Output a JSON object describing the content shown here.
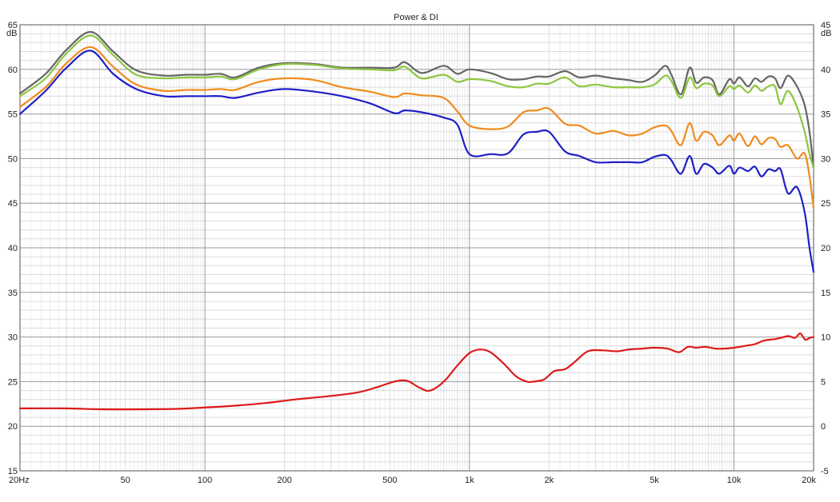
{
  "chart_data": {
    "type": "line",
    "title": "Power & DI",
    "x_scale": "log",
    "xlim": [
      20,
      20000
    ],
    "ylim_left": [
      15,
      65
    ],
    "ylim_right": [
      -5,
      45
    ],
    "left_unit": "dB",
    "right_unit": "dB",
    "grid": true,
    "x_ticks": [
      {
        "value": 20,
        "label": "20Hz"
      },
      {
        "value": 50,
        "label": "50"
      },
      {
        "value": 100,
        "label": "100"
      },
      {
        "value": 200,
        "label": "200"
      },
      {
        "value": 500,
        "label": "500"
      },
      {
        "value": 1000,
        "label": "1k"
      },
      {
        "value": 2000,
        "label": "2k"
      },
      {
        "value": 5000,
        "label": "5k"
      },
      {
        "value": 10000,
        "label": "10k"
      },
      {
        "value": 20000,
        "label": "20k"
      }
    ],
    "y_ticks_left": [
      "65",
      "60",
      "55",
      "50",
      "45",
      "40",
      "35",
      "30",
      "25",
      "20",
      "15"
    ],
    "y_ticks_right": [
      "45",
      "40",
      "35",
      "30",
      "25",
      "20",
      "15",
      "10",
      "5",
      "0",
      "-5"
    ],
    "series": [
      {
        "color": "#666666",
        "axis": "left",
        "x": [
          20,
          25,
          30,
          37,
          45,
          55,
          70,
          85,
          100,
          115,
          130,
          160,
          200,
          260,
          330,
          420,
          520,
          570,
          660,
          800,
          900,
          1000,
          1200,
          1400,
          1600,
          1800,
          2000,
          2300,
          2600,
          3000,
          3500,
          4000,
          4500,
          5000,
          5500,
          5800,
          6300,
          6800,
          7200,
          7700,
          8300,
          8800,
          9600,
          10000,
          10500,
          11300,
          12000,
          12700,
          13500,
          14300,
          15000,
          16000,
          17300,
          18500,
          19300,
          20000
        ],
        "y": [
          57.3,
          59.5,
          62.2,
          64.2,
          62.0,
          59.9,
          59.3,
          59.4,
          59.4,
          59.5,
          59.1,
          60.2,
          60.7,
          60.6,
          60.2,
          60.2,
          60.2,
          60.8,
          59.6,
          60.4,
          59.5,
          60.0,
          59.6,
          58.9,
          58.9,
          59.2,
          59.2,
          59.8,
          59.1,
          59.3,
          59.0,
          58.8,
          58.6,
          59.3,
          60.4,
          59.4,
          57.2,
          60.2,
          58.5,
          59.1,
          58.8,
          57.2,
          58.9,
          58.4,
          59.1,
          58.1,
          59.0,
          58.6,
          59.2,
          59.0,
          57.9,
          59.3,
          58.1,
          56.0,
          53.0,
          49.0
        ]
      },
      {
        "color": "#8dc63f",
        "axis": "left",
        "x": [
          20,
          25,
          30,
          37,
          45,
          55,
          70,
          85,
          100,
          115,
          130,
          160,
          200,
          260,
          330,
          420,
          520,
          570,
          660,
          800,
          900,
          1000,
          1200,
          1400,
          1600,
          1800,
          2000,
          2300,
          2600,
          3000,
          3500,
          4000,
          4500,
          5000,
          5500,
          5800,
          6300,
          6800,
          7200,
          7700,
          8300,
          8800,
          9600,
          10000,
          10500,
          11300,
          12000,
          12700,
          13500,
          14300,
          15000,
          16000,
          17300,
          18500,
          19300,
          20000
        ],
        "y": [
          57.0,
          59.0,
          61.8,
          63.8,
          61.6,
          59.4,
          59.0,
          59.1,
          59.1,
          59.2,
          58.9,
          60.0,
          60.6,
          60.5,
          60.1,
          60.0,
          59.9,
          60.3,
          59.0,
          59.4,
          58.6,
          58.9,
          58.7,
          58.1,
          58.0,
          58.4,
          58.4,
          59.1,
          58.1,
          58.3,
          58.0,
          58.0,
          58.0,
          58.3,
          59.3,
          58.7,
          56.8,
          59.1,
          57.9,
          58.4,
          58.2,
          57.0,
          58.1,
          57.8,
          58.2,
          57.4,
          58.2,
          57.6,
          58.1,
          58.1,
          56.1,
          57.6,
          55.8,
          53.0,
          50.5,
          49.0
        ]
      },
      {
        "color": "#f08c1e",
        "axis": "left",
        "x": [
          20,
          25,
          30,
          37,
          45,
          55,
          70,
          85,
          100,
          115,
          130,
          160,
          200,
          260,
          330,
          420,
          520,
          570,
          660,
          800,
          900,
          1000,
          1200,
          1400,
          1600,
          1800,
          2000,
          2300,
          2600,
          3000,
          3500,
          4000,
          4500,
          5000,
          5500,
          5800,
          6300,
          6800,
          7200,
          7700,
          8300,
          8800,
          9600,
          10000,
          10500,
          11300,
          12000,
          12700,
          13500,
          14300,
          15000,
          16000,
          17300,
          18500,
          19300,
          20000
        ],
        "y": [
          55.8,
          58.0,
          60.7,
          62.5,
          60.3,
          58.3,
          57.6,
          57.7,
          57.7,
          57.8,
          57.7,
          58.6,
          59.0,
          58.8,
          58.0,
          57.5,
          56.9,
          57.3,
          57.1,
          56.8,
          55.3,
          53.7,
          53.3,
          53.6,
          55.2,
          55.4,
          55.6,
          53.9,
          53.7,
          52.8,
          53.1,
          52.6,
          52.8,
          53.5,
          53.7,
          53.1,
          51.5,
          54.0,
          52.0,
          53.0,
          52.6,
          51.5,
          52.6,
          52.0,
          52.8,
          51.4,
          52.5,
          51.6,
          52.3,
          52.2,
          51.3,
          51.5,
          50.0,
          50.6,
          48.0,
          44.5
        ]
      },
      {
        "color": "#1f1fc8",
        "axis": "left",
        "x": [
          20,
          25,
          30,
          37,
          45,
          55,
          70,
          85,
          100,
          115,
          130,
          160,
          200,
          260,
          330,
          420,
          520,
          570,
          660,
          800,
          900,
          1000,
          1200,
          1400,
          1600,
          1800,
          2000,
          2300,
          2600,
          3000,
          3500,
          4000,
          4500,
          5000,
          5500,
          5800,
          6300,
          6800,
          7200,
          7700,
          8300,
          8800,
          9600,
          10000,
          10500,
          11300,
          12000,
          12700,
          13500,
          14300,
          15000,
          16000,
          17300,
          18500,
          19300,
          20000
        ],
        "y": [
          55.0,
          57.6,
          60.2,
          62.1,
          59.5,
          57.8,
          57.0,
          57.0,
          57.0,
          57.0,
          56.8,
          57.4,
          57.8,
          57.5,
          57.0,
          56.2,
          55.1,
          55.4,
          55.2,
          54.6,
          53.8,
          50.5,
          50.5,
          50.6,
          52.7,
          53.0,
          53.0,
          50.8,
          50.3,
          49.6,
          49.6,
          49.6,
          49.6,
          50.2,
          50.4,
          49.8,
          48.3,
          50.3,
          48.3,
          49.4,
          49.0,
          48.3,
          49.2,
          48.3,
          49.0,
          48.6,
          49.1,
          48.0,
          48.8,
          48.6,
          48.8,
          46.1,
          46.8,
          44.0,
          40.0,
          37.3
        ]
      },
      {
        "color": "#dd1a1a",
        "axis": "right",
        "x": [
          20,
          30,
          40,
          60,
          80,
          100,
          130,
          170,
          220,
          300,
          380,
          450,
          520,
          580,
          650,
          710,
          800,
          900,
          1000,
          1100,
          1200,
          1350,
          1500,
          1650,
          1750,
          1900,
          2000,
          2100,
          2300,
          2500,
          2800,
          3200,
          3600,
          4000,
          4500,
          5000,
          5600,
          6200,
          6700,
          7200,
          7800,
          8500,
          9200,
          10000,
          11000,
          12000,
          13000,
          14500,
          16000,
          17000,
          17800,
          18600,
          19300,
          20000
        ],
        "y": [
          2.0,
          2.0,
          1.9,
          1.9,
          1.95,
          2.1,
          2.3,
          2.6,
          3.0,
          3.4,
          3.8,
          4.4,
          5.0,
          5.1,
          4.3,
          4.0,
          5.0,
          6.8,
          8.2,
          8.6,
          8.3,
          7.0,
          5.6,
          5.0,
          5.0,
          5.2,
          5.7,
          6.2,
          6.4,
          7.2,
          8.4,
          8.5,
          8.4,
          8.6,
          8.7,
          8.8,
          8.7,
          8.3,
          8.9,
          8.8,
          8.9,
          8.7,
          8.7,
          8.8,
          9.0,
          9.2,
          9.6,
          9.8,
          10.1,
          9.9,
          10.4,
          9.7,
          9.9,
          10.0
        ]
      }
    ]
  }
}
